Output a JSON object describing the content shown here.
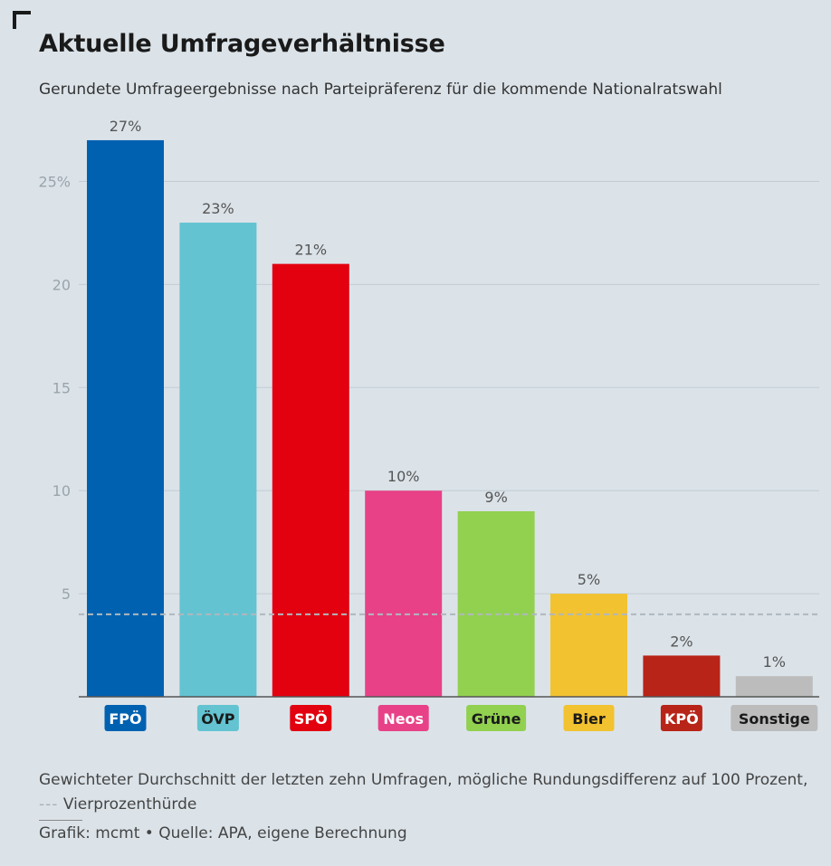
{
  "header": {
    "title": "Aktuelle Umfrageverhältnisse",
    "subtitle": "Gerundete Umfrageergebnisse nach Parteipräferenz für die kommende Nationalratswahl"
  },
  "chart_data": {
    "type": "bar",
    "title": "Aktuelle Umfrageverhältnisse",
    "xlabel": "",
    "ylabel": "",
    "ylim": [
      0,
      27
    ],
    "yticks": [
      5,
      10,
      15,
      20,
      25
    ],
    "ytick_labels": [
      "5",
      "10",
      "15",
      "20",
      "25%"
    ],
    "threshold": 4,
    "categories": [
      "FPÖ",
      "ÖVP",
      "SPÖ",
      "Neos",
      "Grüne",
      "Bier",
      "KPÖ",
      "Sonstige"
    ],
    "values": [
      27,
      23,
      21,
      10,
      9,
      5,
      2,
      1
    ],
    "value_labels": [
      "27%",
      "23%",
      "21%",
      "10%",
      "9%",
      "5%",
      "2%",
      "1%"
    ],
    "colors": [
      "#0061b1",
      "#63c3d1",
      "#e3000f",
      "#e84188",
      "#92d050",
      "#f2c230",
      "#b82418",
      "#bcbcbc"
    ],
    "label_text_colors": [
      "#ffffff",
      "#1a1a1a",
      "#ffffff",
      "#ffffff",
      "#1a1a1a",
      "#1a1a1a",
      "#ffffff",
      "#1a1a1a"
    ]
  },
  "footer": {
    "note": "Gewichteter Durchschnitt der letzten zehn Umfragen, mögliche Rundungsdifferenz auf 100 Prozent,",
    "dash_symbol": "---",
    "threshold_label": "Vierprozenthürde",
    "source": "Grafik: mcmt • Quelle: APA, eigene Berechnung"
  }
}
